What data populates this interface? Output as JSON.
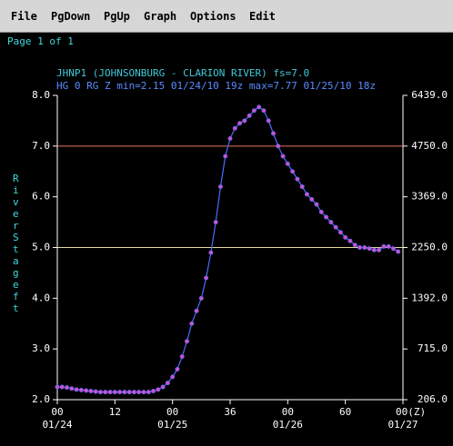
{
  "menu": [
    "File",
    "PgDown",
    "PgUp",
    "Graph",
    "Options",
    "Edit"
  ],
  "page_label": "Page 1 of 1",
  "chart_data": {
    "type": "line",
    "title": "JHNP1 (JOHNSONBURG - CLARION RIVER) fs=7.0",
    "subtitle": "HG 0 RG Z min=2.15 01/24/10 19z max=7.77 01/25/10 18z",
    "ylabel": "River Stage ft",
    "x": [
      0,
      1,
      2,
      3,
      4,
      5,
      6,
      7,
      8,
      9,
      10,
      11,
      12,
      13,
      14,
      15,
      16,
      17,
      18,
      19,
      20,
      21,
      22,
      23,
      24,
      25,
      26,
      27,
      28,
      29,
      30,
      31,
      32,
      33,
      34,
      35,
      36,
      37,
      38,
      39,
      40,
      41,
      42,
      43,
      44,
      45,
      46,
      47,
      48,
      49,
      50,
      51,
      52,
      53,
      54,
      55,
      56,
      57,
      58,
      59,
      60,
      61,
      62,
      63,
      64,
      65,
      66,
      67,
      68,
      69,
      70,
      71
    ],
    "values": [
      2.25,
      2.25,
      2.24,
      2.22,
      2.2,
      2.19,
      2.18,
      2.17,
      2.16,
      2.15,
      2.15,
      2.15,
      2.15,
      2.15,
      2.15,
      2.15,
      2.15,
      2.15,
      2.15,
      2.15,
      2.17,
      2.2,
      2.25,
      2.33,
      2.45,
      2.6,
      2.85,
      3.15,
      3.5,
      3.75,
      4.0,
      4.4,
      4.9,
      5.5,
      6.2,
      6.8,
      7.15,
      7.35,
      7.45,
      7.5,
      7.6,
      7.7,
      7.77,
      7.7,
      7.5,
      7.25,
      7.0,
      6.8,
      6.65,
      6.5,
      6.35,
      6.2,
      6.05,
      5.95,
      5.85,
      5.7,
      5.6,
      5.5,
      5.4,
      5.3,
      5.2,
      5.13,
      5.05,
      5.0,
      5.0,
      4.98,
      4.95,
      4.95,
      5.02,
      5.02,
      4.98,
      4.92
    ],
    "color": "#4a6cff",
    "marker_color": "#d24fc8",
    "xlim": [
      0,
      72
    ],
    "xticks": [
      {
        "value": 0,
        "label": "00"
      },
      12,
      {
        "value": 24,
        "label": "00"
      },
      36,
      {
        "value": 48,
        "label": "00"
      },
      60,
      {
        "value": 72,
        "label": "00(Z)"
      }
    ],
    "xdate_labels": [
      "01/24",
      null,
      "01/25",
      null,
      "01/26",
      null,
      "01/27"
    ],
    "ylim": [
      2,
      8
    ],
    "yticks": [
      {
        "value": 2,
        "label": "2.0"
      },
      {
        "value": 3,
        "label": "3.0"
      },
      {
        "value": 4,
        "label": "4.0"
      },
      {
        "value": 5,
        "label": "5.0"
      },
      {
        "value": 6,
        "label": "6.0"
      },
      {
        "value": 7,
        "label": "7.0"
      },
      {
        "value": 8,
        "label": "8.0"
      }
    ],
    "y2ticks": [
      {
        "value": 206,
        "label": "206.0"
      },
      {
        "value": 715,
        "label": "715.0"
      },
      {
        "value": 1392,
        "label": "1392.0"
      },
      {
        "value": 2250,
        "label": "2250.0"
      },
      {
        "value": 3369,
        "label": "3369.0"
      },
      {
        "value": 4750,
        "label": "4750.0"
      },
      {
        "value": 6439,
        "label": "6439.0"
      }
    ],
    "reference_lines": [
      {
        "value": 7,
        "color": "#e8795a"
      },
      {
        "value": 5,
        "color": "#e8d89a"
      }
    ]
  }
}
